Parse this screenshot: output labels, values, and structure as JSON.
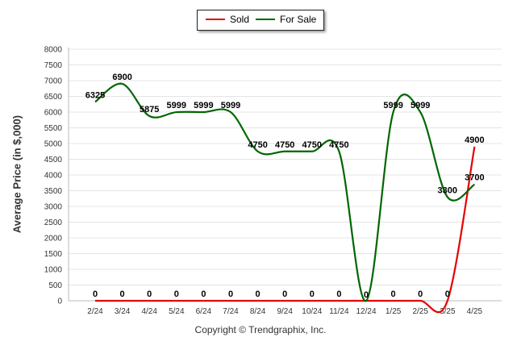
{
  "chart_data": {
    "type": "line",
    "categories": [
      "2/24",
      "3/24",
      "4/24",
      "5/24",
      "6/24",
      "7/24",
      "8/24",
      "9/24",
      "10/24",
      "11/24",
      "12/24",
      "1/25",
      "2/25",
      "3/25",
      "4/25"
    ],
    "series": [
      {
        "name": "Sold",
        "color": "#e60000",
        "values": [
          0,
          0,
          0,
          0,
          0,
          0,
          0,
          0,
          0,
          0,
          0,
          0,
          0,
          0,
          4900
        ],
        "labels": [
          "0",
          "0",
          "0",
          "0",
          "0",
          "0",
          "0",
          "0",
          "0",
          "0",
          "0",
          "0",
          "0",
          "0",
          "4900"
        ]
      },
      {
        "name": "For Sale",
        "color": "#006600",
        "values": [
          6325,
          6900,
          5875,
          5999,
          5999,
          5999,
          4750,
          4750,
          4750,
          4750,
          0,
          5999,
          5999,
          3300,
          3700
        ],
        "labels": [
          "6325",
          "6900",
          "5875",
          "5999",
          "5999",
          "5999",
          "4750",
          "4750",
          "4750",
          "4750",
          "0",
          "5999",
          "5999",
          "3300",
          "3700"
        ]
      }
    ],
    "ylabel": "Average Price (in $,000)",
    "ylim": [
      0,
      8000
    ],
    "yticks": [
      0,
      500,
      1000,
      1500,
      2000,
      2500,
      3000,
      3500,
      4000,
      4500,
      5000,
      5500,
      6000,
      6500,
      7000,
      7500,
      8000
    ],
    "grid": true,
    "legend_position": "top-center"
  },
  "footer": {
    "text": "Copyright © Trendgraphix, Inc."
  }
}
